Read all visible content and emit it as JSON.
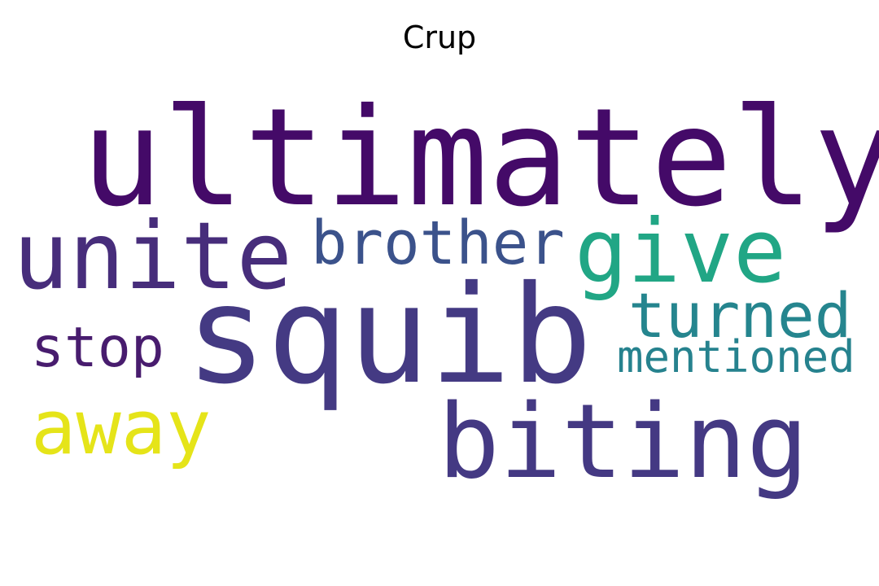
{
  "title": "Crup",
  "words": [
    {
      "id": "ultimately",
      "text": "ultimately",
      "color": "#440a68"
    },
    {
      "id": "squib",
      "text": "squib",
      "color": "#443a83"
    },
    {
      "id": "unite",
      "text": "unite",
      "color": "#472d7b"
    },
    {
      "id": "biting",
      "text": "biting",
      "color": "#443983"
    },
    {
      "id": "give",
      "text": "give",
      "color": "#21a685"
    },
    {
      "id": "brother",
      "text": "brother",
      "color": "#3b528b"
    },
    {
      "id": "turned",
      "text": "turned",
      "color": "#25858e"
    },
    {
      "id": "stop",
      "text": "stop",
      "color": "#481c6e"
    },
    {
      "id": "mentioned",
      "text": "mentioned",
      "color": "#26828e"
    },
    {
      "id": "away",
      "text": "away",
      "color": "#e5e419"
    }
  ]
}
